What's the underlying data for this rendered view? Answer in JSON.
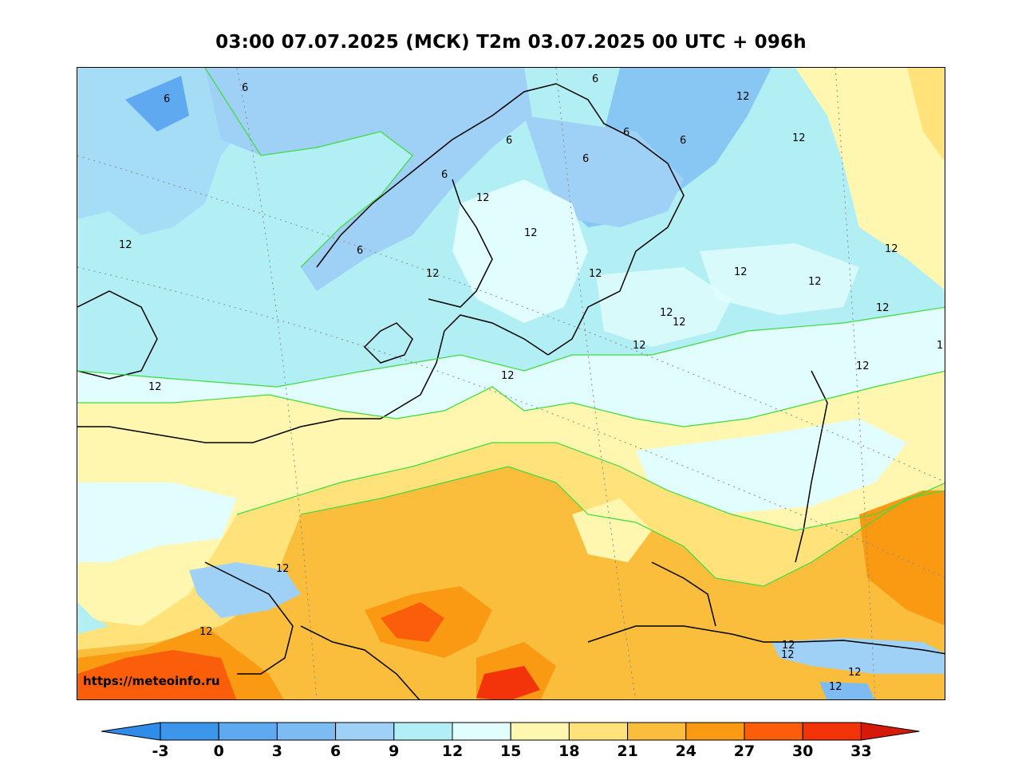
{
  "header": {
    "title": "03:00 07.07.2025 (МСК) T2m 03.07.2025 00 UTC + 096h"
  },
  "map": {
    "watermark": "https://meteoinfo.ru",
    "contour_labels": [
      "6",
      "6",
      "6",
      "6",
      "6",
      "6",
      "6",
      "6",
      "6",
      "12",
      "12",
      "12",
      "12",
      "12",
      "12",
      "12",
      "12",
      "12",
      "12",
      "12",
      "12",
      "12",
      "12",
      "12",
      "12",
      "12",
      "12",
      "12",
      "12",
      "12",
      "12",
      "12",
      "1"
    ]
  },
  "colorbar": {
    "ticks": [
      "-3",
      "0",
      "3",
      "6",
      "9",
      "12",
      "15",
      "18",
      "21",
      "24",
      "27",
      "30",
      "33"
    ],
    "colors": [
      "#2f8ce8",
      "#3d95ec",
      "#5ea9f0",
      "#7dbcf3",
      "#9fd1f6",
      "#b2eff5",
      "#e2fdfd",
      "#fff7b0",
      "#ffe27a",
      "#fbbd3c",
      "#f99a12",
      "#fb5e0a",
      "#f3330a",
      "#d61a0a"
    ]
  }
}
